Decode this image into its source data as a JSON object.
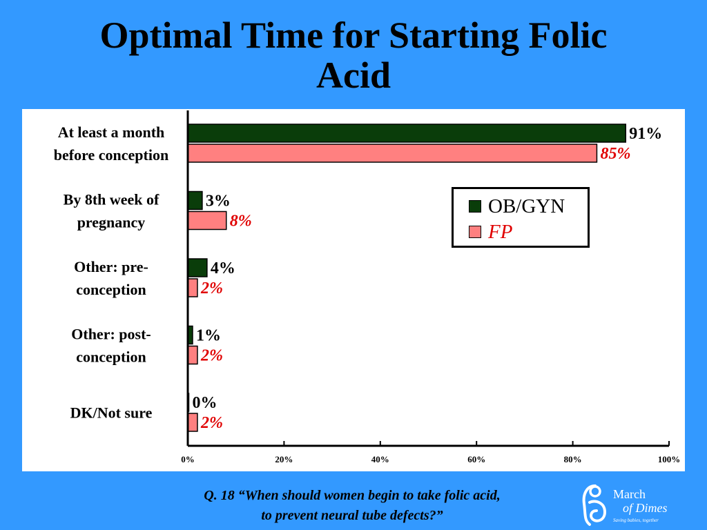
{
  "title": {
    "line1": "Optimal Time for Starting Folic",
    "line2": "Acid"
  },
  "chart_data": {
    "type": "bar",
    "orientation": "horizontal",
    "categories": [
      [
        "At least a month",
        "before conception"
      ],
      [
        "By 8th week of",
        "pregnancy"
      ],
      [
        "Other: pre-",
        "conception"
      ],
      [
        "Other: post-",
        "conception"
      ],
      [
        "DK/Not sure"
      ]
    ],
    "series": [
      {
        "name": "OB/GYN",
        "values": [
          91,
          3,
          4,
          1,
          0
        ],
        "labels": [
          "91%",
          "3%",
          "4%",
          "1%",
          "0%"
        ],
        "color": "#0a3d0a"
      },
      {
        "name": "FP",
        "values": [
          85,
          8,
          2,
          2,
          2
        ],
        "labels": [
          "85%",
          "8%",
          "2%",
          "2%",
          "2%"
        ],
        "color": "#ff8080"
      }
    ],
    "xlim": [
      0,
      100
    ],
    "ticks": [
      "0%",
      "20%",
      "40%",
      "60%",
      "80%",
      "100%"
    ],
    "grid": false,
    "legend_position": "right"
  },
  "legend": {
    "items": [
      {
        "label": "OB/GYN",
        "color": "#0a3d0a",
        "style": "normal"
      },
      {
        "label": "FP",
        "color": "#ff8080",
        "style": "italic-red"
      }
    ]
  },
  "question": {
    "line1": "Q. 18  “When should women begin to take folic acid,",
    "line2": "to prevent neural tube defects?”"
  },
  "logo": {
    "line1": "March",
    "line2": "of Dimes",
    "tagline": "Saving babies, together"
  },
  "colors": {
    "background": "#3399ff",
    "series_a_label": "#000000",
    "series_b_label": "#e00000"
  }
}
